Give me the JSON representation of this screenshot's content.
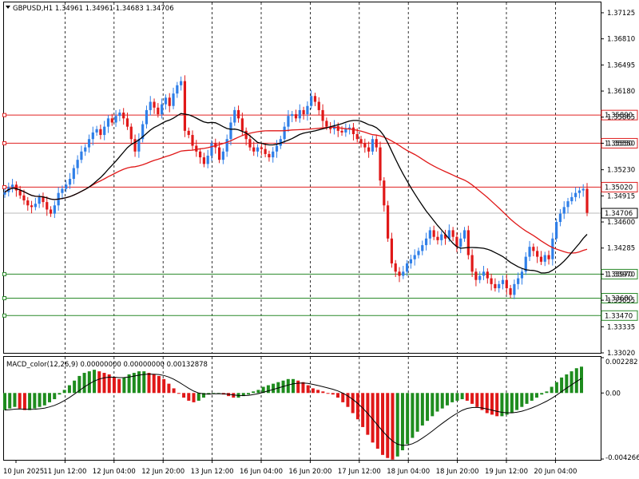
{
  "chart_data": [
    {
      "type": "candlestick",
      "header": "GBPUSD,H1  1.34961 1.34961 1.34683 1.34706",
      "symbol": "GBPUSD",
      "timeframe": "H1",
      "ohlc_last": {
        "open": 1.34961,
        "high": 1.34961,
        "low": 1.34683,
        "close": 1.34706
      },
      "ylim": [
        1.3302,
        1.3725
      ],
      "y_ticks": [
        "1.37125",
        "1.36810",
        "1.36495",
        "1.36180",
        "1.35865",
        "1.35550",
        "1.35230",
        "1.34915",
        "1.34600",
        "1.34285",
        "1.33970",
        "1.33655",
        "1.33335",
        "1.33020"
      ],
      "x_ticks": [
        "10 Jun 2025",
        "11 Jun 12:00",
        "12 Jun 04:00",
        "12 Jun 20:00",
        "13 Jun 12:00",
        "16 Jun 04:00",
        "16 Jun 20:00",
        "17 Jun 12:00",
        "18 Jun 04:00",
        "18 Jun 20:00",
        "19 Jun 12:00",
        "20 Jun 04:00"
      ],
      "current_price": "1.34706",
      "horizontal_levels": [
        {
          "value": "1.35890",
          "color": "#e02020",
          "kind": "resistance"
        },
        {
          "value": "1.35550",
          "color": "#e02020",
          "kind": "resistance"
        },
        {
          "value": "1.35020",
          "color": "#e02020",
          "kind": "resistance"
        },
        {
          "value": "1.33970",
          "color": "#2a8a2a",
          "kind": "support"
        },
        {
          "value": "1.33680",
          "color": "#2a8a2a",
          "kind": "support"
        },
        {
          "value": "1.33470",
          "color": "#2a8a2a",
          "kind": "support"
        }
      ],
      "colors": {
        "bull": "#2f7fe8",
        "bear": "#e01818",
        "ma_fast": "#000000",
        "ma_slow": "#e01818",
        "grid": "#000000"
      },
      "closes": [
        1.3496,
        1.3502,
        1.3505,
        1.3498,
        1.3492,
        1.3486,
        1.348,
        1.3478,
        1.3482,
        1.349,
        1.3484,
        1.3475,
        1.347,
        1.348,
        1.3495,
        1.35,
        1.3505,
        1.3512,
        1.3525,
        1.3535,
        1.3545,
        1.355,
        1.356,
        1.3568,
        1.3572,
        1.3565,
        1.3575,
        1.3585,
        1.358,
        1.3588,
        1.3592,
        1.3585,
        1.3575,
        1.356,
        1.3545,
        1.356,
        1.3578,
        1.3595,
        1.3605,
        1.3598,
        1.359,
        1.3602,
        1.361,
        1.36,
        1.3615,
        1.3625,
        1.363,
        1.357,
        1.3565,
        1.3552,
        1.3545,
        1.3538,
        1.353,
        1.354,
        1.3555,
        1.355,
        1.3535,
        1.3545,
        1.356,
        1.358,
        1.3595,
        1.3585,
        1.357,
        1.356,
        1.355,
        1.3545,
        1.355,
        1.3548,
        1.3542,
        1.3538,
        1.3545,
        1.3552,
        1.356,
        1.3575,
        1.3588,
        1.359,
        1.3585,
        1.3595,
        1.359,
        1.36,
        1.3612,
        1.3605,
        1.3595,
        1.3582,
        1.3575,
        1.3572,
        1.3576,
        1.357,
        1.3568,
        1.3572,
        1.3574,
        1.3566,
        1.356,
        1.3555,
        1.355,
        1.3545,
        1.356,
        1.355,
        1.351,
        1.348,
        1.344,
        1.341,
        1.34,
        1.3395,
        1.34,
        1.341,
        1.3415,
        1.342,
        1.3425,
        1.3432,
        1.344,
        1.345,
        1.3442,
        1.3438,
        1.3445,
        1.344,
        1.345,
        1.3442,
        1.343,
        1.344,
        1.345,
        1.342,
        1.34,
        1.339,
        1.3395,
        1.34,
        1.3392,
        1.3385,
        1.338,
        1.3385,
        1.339,
        1.338,
        1.3372,
        1.3385,
        1.3392,
        1.34,
        1.3418,
        1.343,
        1.3425,
        1.3418,
        1.3412,
        1.342,
        1.3415,
        1.344,
        1.346,
        1.347,
        1.3478,
        1.3485,
        1.349,
        1.3495,
        1.3498,
        1.35,
        1.3471
      ],
      "indicator": {
        "type": "bar",
        "title": "MACD_color(12,26,9) 0.00000000 0.00000000 0.00132878",
        "ylim": [
          -0.004266,
          0.002282
        ],
        "y_ticks": [
          "0.002282",
          "0.00",
          "-0.004266"
        ],
        "colors": {
          "up": "#1e8c1e",
          "down": "#e01818",
          "signal": "#000000"
        },
        "values": [
          -0.0011,
          -0.001,
          -0.0009,
          -0.001,
          -0.0011,
          -0.0011,
          -0.001,
          -0.0009,
          -0.0008,
          -0.0006,
          -0.0004,
          -0.0001,
          0.0002,
          0.0005,
          0.0008,
          0.0011,
          0.0013,
          0.0014,
          0.0015,
          0.0014,
          0.0013,
          0.0012,
          0.001,
          0.0009,
          0.001,
          0.0012,
          0.0013,
          0.0014,
          0.0014,
          0.0013,
          0.0012,
          0.0011,
          0.0009,
          0.0006,
          0.0003,
          0.0,
          -0.0003,
          -0.0005,
          -0.0006,
          -0.0005,
          -0.0003,
          -0.0001,
          0.0,
          0.0,
          -0.0001,
          -0.0002,
          -0.0003,
          -0.0003,
          -0.0002,
          -0.0001,
          0.0001,
          0.0002,
          0.0004,
          0.0005,
          0.0006,
          0.0007,
          0.0008,
          0.0009,
          0.0009,
          0.0008,
          0.0007,
          0.0005,
          0.0003,
          0.0002,
          0.0001,
          0.0,
          -0.0001,
          -0.0003,
          -0.0006,
          -0.0009,
          -0.0013,
          -0.0017,
          -0.0022,
          -0.0027,
          -0.0032,
          -0.0036,
          -0.004,
          -0.0042,
          -0.0043,
          -0.0041,
          -0.0037,
          -0.0033,
          -0.0029,
          -0.0025,
          -0.0021,
          -0.0018,
          -0.0015,
          -0.0012,
          -0.001,
          -0.0008,
          -0.0006,
          -0.0005,
          -0.0004,
          -0.0005,
          -0.0007,
          -0.0009,
          -0.0011,
          -0.0013,
          -0.0014,
          -0.0015,
          -0.0015,
          -0.0014,
          -0.0013,
          -0.0011,
          -0.0009,
          -0.0007,
          -0.0005,
          -0.0003,
          -0.0001,
          0.0001,
          0.0004,
          0.0007,
          0.001,
          0.0012,
          0.0014,
          0.0016,
          0.0017
        ]
      }
    }
  ]
}
